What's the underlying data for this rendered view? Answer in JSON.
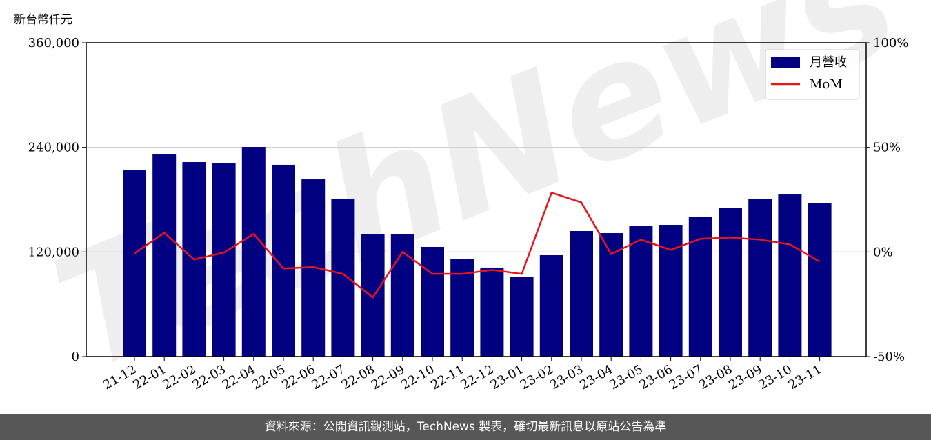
{
  "chart_data": {
    "type": "bar",
    "unit_label": "新台幣仟元",
    "watermark": "TechNews",
    "categories": [
      "21-12",
      "22-01",
      "22-02",
      "22-03",
      "22-04",
      "22-05",
      "22-06",
      "22-07",
      "22-08",
      "22-09",
      "22-10",
      "22-11",
      "22-12",
      "23-01",
      "23-02",
      "23-03",
      "23-04",
      "23-05",
      "23-06",
      "23-07",
      "23-08",
      "23-09",
      "23-10",
      "23-11"
    ],
    "series": [
      {
        "name": "月營收",
        "type": "bar",
        "color": "#000080",
        "values": [
          213600,
          231800,
          223100,
          222300,
          240500,
          220000,
          203300,
          181200,
          140800,
          140800,
          125800,
          111600,
          102100,
          91000,
          116300,
          144000,
          141600,
          150300,
          151100,
          160600,
          170900,
          180400,
          185900,
          176400
        ]
      },
      {
        "name": "MoM",
        "type": "line",
        "axis": "y2",
        "color": "#e8141b",
        "values": [
          -0.7,
          9.2,
          -3.6,
          -0.3,
          8.6,
          -7.9,
          -7.2,
          -10.5,
          -21.7,
          0,
          -10.5,
          -10.5,
          -8.6,
          -10.5,
          28.3,
          23.7,
          -1.0,
          5.9,
          1.0,
          6.3,
          6.9,
          5.9,
          3.6,
          -4.6
        ]
      }
    ],
    "ylim": [
      0,
      360000
    ],
    "yticks": [
      0,
      {
        "value": 120000,
        "label": "120,000"
      },
      {
        "value": 240000,
        "label": "240,000"
      },
      {
        "value": 360000,
        "label": "360,000"
      }
    ],
    "y2lim": [
      -50,
      100
    ],
    "y2ticks": [
      {
        "value": -50,
        "label": "-50%"
      },
      {
        "value": 0,
        "label": "0%"
      },
      {
        "value": 50,
        "label": "50%"
      },
      {
        "value": 100,
        "label": "100%"
      }
    ],
    "grid": true,
    "legend": "upper right"
  },
  "footer": "資料來源：公開資訊觀測站，TechNews 製表，確切最新訊息以原站公告為準"
}
